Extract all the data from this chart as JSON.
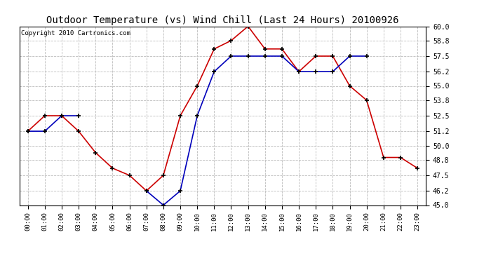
{
  "title": "Outdoor Temperature (vs) Wind Chill (Last 24 Hours) 20100926",
  "copyright": "Copyright 2010 Cartronics.com",
  "hours": [
    "00:00",
    "01:00",
    "02:00",
    "03:00",
    "04:00",
    "05:00",
    "06:00",
    "07:00",
    "08:00",
    "09:00",
    "10:00",
    "11:00",
    "12:00",
    "13:00",
    "14:00",
    "15:00",
    "16:00",
    "17:00",
    "18:00",
    "19:00",
    "20:00",
    "21:00",
    "22:00",
    "23:00"
  ],
  "red_y": [
    51.2,
    52.5,
    52.5,
    51.2,
    49.4,
    48.1,
    47.5,
    46.2,
    47.5,
    52.5,
    55.0,
    58.1,
    58.8,
    60.0,
    58.1,
    58.1,
    56.2,
    57.5,
    57.5,
    55.0,
    53.8,
    49.0,
    49.0,
    48.1
  ],
  "blue_y": [
    51.2,
    51.2,
    52.5,
    52.5,
    null,
    null,
    null,
    46.2,
    45.0,
    46.2,
    52.5,
    56.2,
    57.5,
    57.5,
    57.5,
    57.5,
    56.2,
    56.2,
    56.2,
    57.5,
    57.5,
    null,
    null,
    null
  ],
  "ylim": [
    45.0,
    60.0
  ],
  "yticks": [
    45.0,
    46.2,
    47.5,
    48.8,
    50.0,
    51.2,
    52.5,
    53.8,
    55.0,
    56.2,
    57.5,
    58.8,
    60.0
  ],
  "bg_color": "#ffffff",
  "grid_color": "#bbbbbb",
  "red_color": "#cc0000",
  "blue_color": "#0000bb",
  "title_fontsize": 10,
  "copyright_fontsize": 6.5,
  "tick_fontsize": 6.5,
  "ytick_fontsize": 7
}
